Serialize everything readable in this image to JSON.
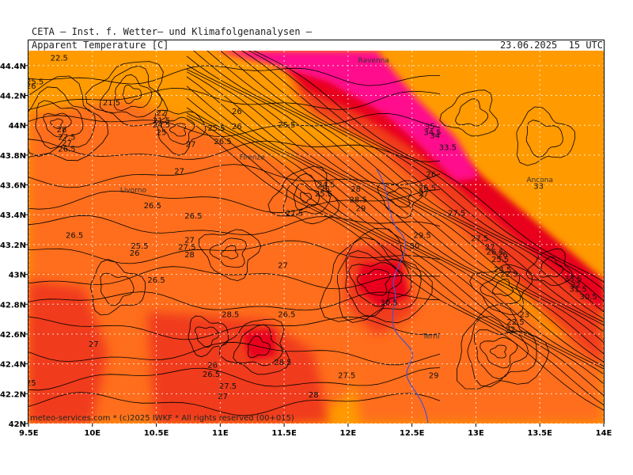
{
  "header": {
    "provider": "CETA — Inst. f. Wetter— und Klimafolgenanalysen —",
    "product": "Apparent Temperature [C]",
    "valid_time": "23.06.2025  15 UTC"
  },
  "footer": {
    "credit": "meteo-services.com * (c)2025 IWKF * All rights reserved (00+015)"
  },
  "colors": {
    "base": "#ff9a00",
    "warm": "#ff6e1c",
    "hot": "#f03a1a",
    "very_hot": "#e8001e",
    "extreme": "#ff0f8c",
    "contour": "#000000",
    "grid": "#ffffff",
    "river": "#5050c8"
  },
  "map": {
    "lon_range": [
      9.5,
      14.0
    ],
    "lat_range": [
      42.0,
      44.5
    ],
    "lon_ticks": [
      {
        "value": 9.5,
        "label": "9.5E"
      },
      {
        "value": 10.0,
        "label": "10E"
      },
      {
        "value": 10.5,
        "label": "10.5E"
      },
      {
        "value": 11.0,
        "label": "11E"
      },
      {
        "value": 11.5,
        "label": "11.5E"
      },
      {
        "value": 12.0,
        "label": "12E"
      },
      {
        "value": 12.5,
        "label": "12.5E"
      },
      {
        "value": 13.0,
        "label": "13E"
      },
      {
        "value": 13.5,
        "label": "13.5E"
      },
      {
        "value": 14.0,
        "label": "14E"
      }
    ],
    "lat_ticks": [
      {
        "value": 42.0,
        "label": "42N"
      },
      {
        "value": 42.2,
        "label": "42.2N"
      },
      {
        "value": 42.4,
        "label": "42.4N"
      },
      {
        "value": 42.6,
        "label": "42.6N"
      },
      {
        "value": 42.8,
        "label": "42.8N"
      },
      {
        "value": 43.0,
        "label": "43N"
      },
      {
        "value": 43.2,
        "label": "43.2N"
      },
      {
        "value": 43.4,
        "label": "43.4N"
      },
      {
        "value": 43.6,
        "label": "43.6N"
      },
      {
        "value": 43.8,
        "label": "43.8N"
      },
      {
        "value": 44.0,
        "label": "44N"
      },
      {
        "value": 44.2,
        "label": "44.2N"
      },
      {
        "value": 44.4,
        "label": "44.4N"
      }
    ],
    "cities": [
      {
        "name": "Ravenna",
        "lon": 12.2,
        "lat": 44.42
      },
      {
        "name": "Firenze",
        "lon": 11.25,
        "lat": 43.77
      },
      {
        "name": "Livorno",
        "lon": 10.32,
        "lat": 43.55
      },
      {
        "name": "Ancona",
        "lon": 13.5,
        "lat": 43.62
      },
      {
        "name": "Terni",
        "lon": 12.65,
        "lat": 42.57
      }
    ],
    "contour_labels": [
      {
        "text": "22.5",
        "lon": 9.74,
        "lat": 44.45
      },
      {
        "text": "25.5",
        "lon": 9.55,
        "lat": 44.29
      },
      {
        "text": "26",
        "lon": 9.52,
        "lat": 44.26
      },
      {
        "text": "21.5",
        "lon": 10.15,
        "lat": 44.15
      },
      {
        "text": "22",
        "lon": 10.54,
        "lat": 44.08
      },
      {
        "text": "21.5",
        "lon": 10.54,
        "lat": 44.03
      },
      {
        "text": "24.5",
        "lon": 10.54,
        "lat": 44.0
      },
      {
        "text": "25",
        "lon": 10.54,
        "lat": 43.95
      },
      {
        "text": "28",
        "lon": 9.76,
        "lat": 43.97
      },
      {
        "text": "27.5",
        "lon": 9.8,
        "lat": 43.92
      },
      {
        "text": "27",
        "lon": 9.8,
        "lat": 43.88
      },
      {
        "text": "26.5",
        "lon": 9.8,
        "lat": 43.84
      },
      {
        "text": "26",
        "lon": 11.13,
        "lat": 44.09
      },
      {
        "text": "26",
        "lon": 11.13,
        "lat": 43.99
      },
      {
        "text": "25.5",
        "lon": 10.97,
        "lat": 43.98
      },
      {
        "text": "25.5",
        "lon": 11.52,
        "lat": 44.0
      },
      {
        "text": "26.5",
        "lon": 11.02,
        "lat": 43.89
      },
      {
        "text": "27",
        "lon": 10.77,
        "lat": 43.87
      },
      {
        "text": "27",
        "lon": 10.68,
        "lat": 43.69
      },
      {
        "text": "24.5",
        "lon": 11.83,
        "lat": 43.6
      },
      {
        "text": "25",
        "lon": 11.82,
        "lat": 43.57
      },
      {
        "text": "25.5",
        "lon": 11.81,
        "lat": 43.54
      },
      {
        "text": "26.5",
        "lon": 10.47,
        "lat": 43.46
      },
      {
        "text": "26.5",
        "lon": 10.79,
        "lat": 43.39
      },
      {
        "text": "27.5",
        "lon": 11.58,
        "lat": 43.41
      },
      {
        "text": "27",
        "lon": 10.76,
        "lat": 43.23
      },
      {
        "text": "27.5",
        "lon": 10.74,
        "lat": 43.18
      },
      {
        "text": "28",
        "lon": 10.76,
        "lat": 43.13
      },
      {
        "text": "25.5",
        "lon": 10.37,
        "lat": 43.19
      },
      {
        "text": "26",
        "lon": 10.33,
        "lat": 43.14
      },
      {
        "text": "26.5",
        "lon": 9.86,
        "lat": 43.26
      },
      {
        "text": "27",
        "lon": 11.49,
        "lat": 43.06
      },
      {
        "text": "26.5",
        "lon": 10.5,
        "lat": 42.96
      },
      {
        "text": "28.5",
        "lon": 11.08,
        "lat": 42.73
      },
      {
        "text": "26.5",
        "lon": 11.52,
        "lat": 42.73
      },
      {
        "text": "27",
        "lon": 10.01,
        "lat": 42.53
      },
      {
        "text": "26",
        "lon": 10.94,
        "lat": 42.39
      },
      {
        "text": "26.5",
        "lon": 10.93,
        "lat": 42.33
      },
      {
        "text": "28.5",
        "lon": 11.49,
        "lat": 42.41
      },
      {
        "text": "27.5",
        "lon": 11.06,
        "lat": 42.25
      },
      {
        "text": "27",
        "lon": 11.02,
        "lat": 42.18
      },
      {
        "text": "27.5",
        "lon": 11.99,
        "lat": 42.32
      },
      {
        "text": "28",
        "lon": 11.73,
        "lat": 42.19
      },
      {
        "text": "35",
        "lon": 12.64,
        "lat": 43.99
      },
      {
        "text": "34.5",
        "lon": 12.66,
        "lat": 43.95
      },
      {
        "text": "34",
        "lon": 12.68,
        "lat": 43.93
      },
      {
        "text": "33.5",
        "lon": 12.78,
        "lat": 43.85
      },
      {
        "text": "26",
        "lon": 12.65,
        "lat": 43.67
      },
      {
        "text": "28",
        "lon": 12.06,
        "lat": 43.57
      },
      {
        "text": "28.5",
        "lon": 12.08,
        "lat": 43.5
      },
      {
        "text": "29",
        "lon": 12.1,
        "lat": 43.44
      },
      {
        "text": "26.5",
        "lon": 12.62,
        "lat": 43.58
      },
      {
        "text": "27",
        "lon": 12.59,
        "lat": 43.54
      },
      {
        "text": "27.5",
        "lon": 12.85,
        "lat": 43.41
      },
      {
        "text": "29.5",
        "lon": 12.58,
        "lat": 43.26
      },
      {
        "text": "30",
        "lon": 12.52,
        "lat": 43.19
      },
      {
        "text": "30.5",
        "lon": 12.32,
        "lat": 42.81
      },
      {
        "text": "33",
        "lon": 13.49,
        "lat": 43.59
      },
      {
        "text": "27.5",
        "lon": 13.03,
        "lat": 43.24
      },
      {
        "text": "27",
        "lon": 13.11,
        "lat": 43.18
      },
      {
        "text": "26.5",
        "lon": 13.15,
        "lat": 43.15
      },
      {
        "text": "26",
        "lon": 13.21,
        "lat": 43.13
      },
      {
        "text": "25.5",
        "lon": 13.19,
        "lat": 43.1
      },
      {
        "text": "24.5",
        "lon": 13.21,
        "lat": 43.03
      },
      {
        "text": "22.5",
        "lon": 13.26,
        "lat": 43.0
      },
      {
        "text": "23",
        "lon": 13.38,
        "lat": 42.73
      },
      {
        "text": "22.5",
        "lon": 13.31,
        "lat": 42.68
      },
      {
        "text": "22",
        "lon": 13.27,
        "lat": 42.63
      },
      {
        "text": "33.5",
        "lon": 13.76,
        "lat": 42.97
      },
      {
        "text": "32",
        "lon": 13.78,
        "lat": 42.93
      },
      {
        "text": "31.5",
        "lon": 13.8,
        "lat": 42.9
      },
      {
        "text": "30.5",
        "lon": 13.88,
        "lat": 42.85
      },
      {
        "text": "29",
        "lon": 12.67,
        "lat": 42.32
      },
      {
        "text": "25",
        "lon": 9.52,
        "lat": 42.27
      }
    ]
  }
}
